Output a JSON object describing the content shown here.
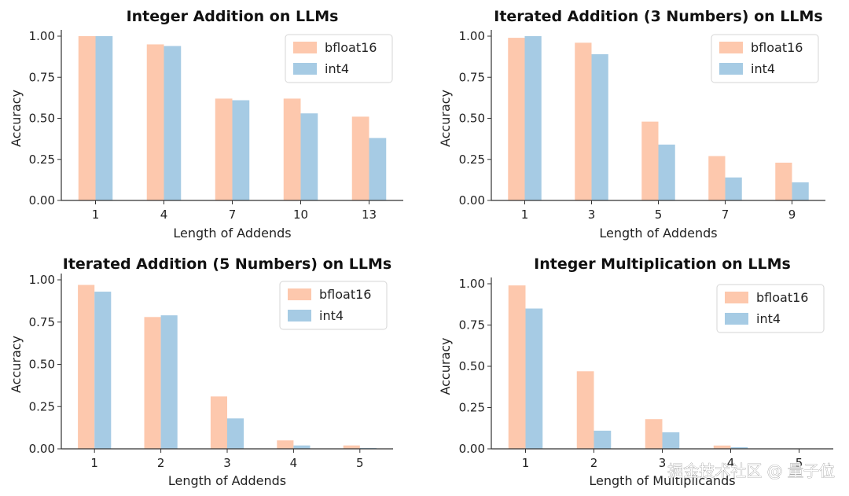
{
  "colors": {
    "bfloat16": "#fdc8ad",
    "int4": "#a6cbe4",
    "axis": "#333333"
  },
  "legend": {
    "placement": "top-right"
  },
  "watermark": "掘金技术社区 @ 量子位",
  "chart_data": [
    {
      "type": "bar",
      "title": "Integer Addition on LLMs",
      "xlabel": "Length of Addends",
      "ylabel": "Accuracy",
      "categories": [
        "1",
        "4",
        "7",
        "10",
        "13"
      ],
      "ylim": [
        0,
        1.0
      ],
      "yticks": [
        "0.00",
        "0.25",
        "0.50",
        "0.75",
        "1.00"
      ],
      "series": [
        {
          "name": "bfloat16",
          "values": [
            1.0,
            0.95,
            0.62,
            0.62,
            0.51
          ]
        },
        {
          "name": "int4",
          "values": [
            1.0,
            0.94,
            0.61,
            0.53,
            0.38
          ]
        }
      ]
    },
    {
      "type": "bar",
      "title": "Iterated Addition (3 Numbers) on LLMs",
      "xlabel": "Length of Addends",
      "ylabel": "Accuracy",
      "categories": [
        "1",
        "3",
        "5",
        "7",
        "9"
      ],
      "ylim": [
        0,
        1.0
      ],
      "yticks": [
        "0.00",
        "0.25",
        "0.50",
        "0.75",
        "1.00"
      ],
      "series": [
        {
          "name": "bfloat16",
          "values": [
            0.99,
            0.96,
            0.48,
            0.27,
            0.23
          ]
        },
        {
          "name": "int4",
          "values": [
            1.0,
            0.89,
            0.34,
            0.14,
            0.11
          ]
        }
      ]
    },
    {
      "type": "bar",
      "title": "Iterated Addition (5 Numbers) on LLMs",
      "xlabel": "Length of Addends",
      "ylabel": "Accuracy",
      "categories": [
        "1",
        "2",
        "3",
        "4",
        "5"
      ],
      "ylim": [
        0,
        1.0
      ],
      "yticks": [
        "0.00",
        "0.25",
        "0.50",
        "0.75",
        "1.00"
      ],
      "series": [
        {
          "name": "bfloat16",
          "values": [
            0.97,
            0.78,
            0.31,
            0.05,
            0.02
          ]
        },
        {
          "name": "int4",
          "values": [
            0.93,
            0.79,
            0.18,
            0.02,
            0.005
          ]
        }
      ]
    },
    {
      "type": "bar",
      "title": "Integer Multiplication on LLMs",
      "xlabel": "Length of Multiplicands",
      "ylabel": "Accuracy",
      "categories": [
        "1",
        "2",
        "3",
        "4",
        "5"
      ],
      "ylim": [
        0,
        1.0
      ],
      "yticks": [
        "0.00",
        "0.25",
        "0.50",
        "0.75",
        "1.00"
      ],
      "series": [
        {
          "name": "bfloat16",
          "values": [
            0.99,
            0.47,
            0.18,
            0.02,
            0.0
          ]
        },
        {
          "name": "int4",
          "values": [
            0.85,
            0.11,
            0.1,
            0.01,
            0.0
          ]
        }
      ]
    }
  ]
}
